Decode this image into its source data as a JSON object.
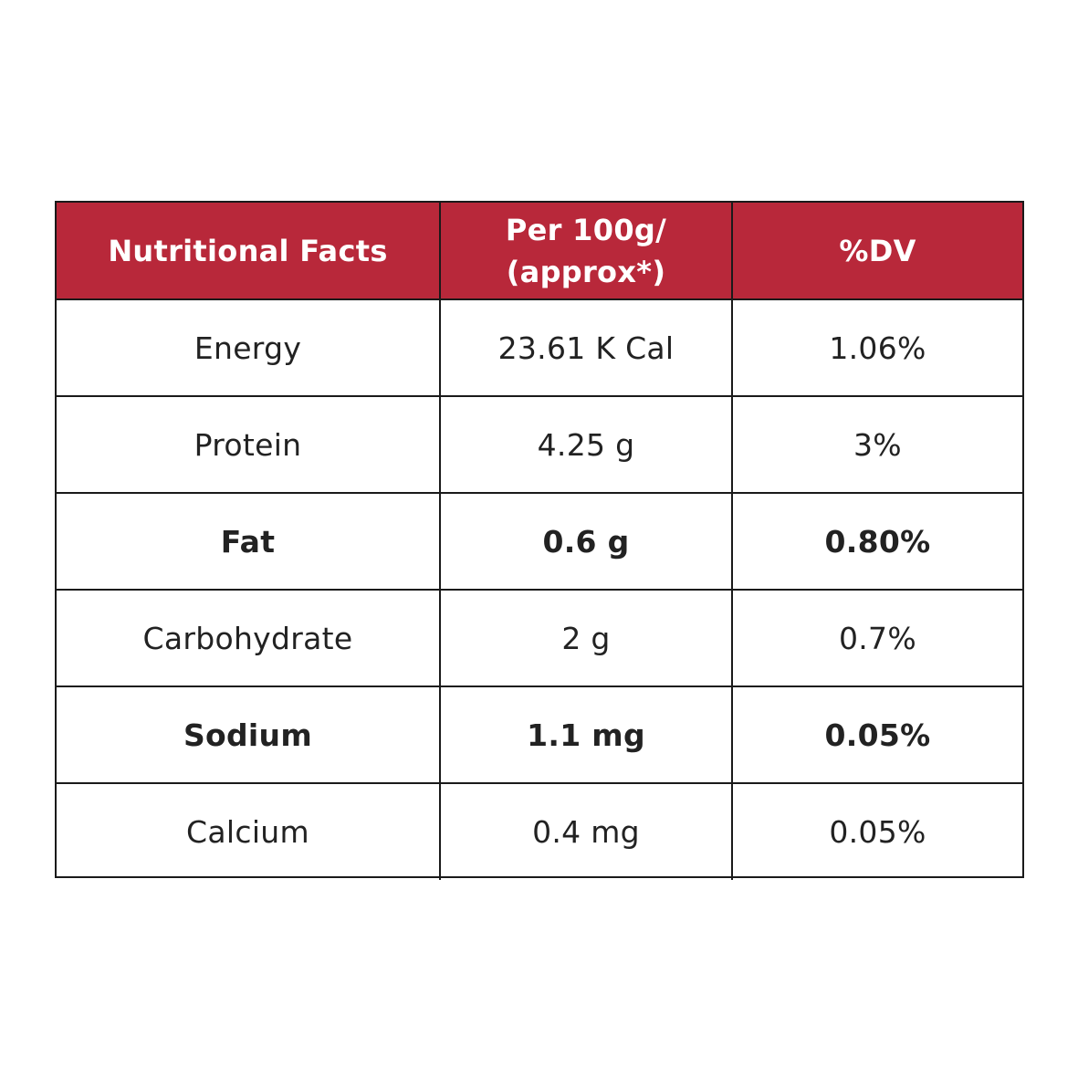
{
  "header": {
    "col1": "Nutritional Facts",
    "col2_line1": "Per 100g/",
    "col2_line2": "(approx*)",
    "col3": "%DV"
  },
  "rows": [
    {
      "nutrient": "Energy",
      "amount": "23.61 K Cal",
      "dv": "1.06%",
      "bold": false
    },
    {
      "nutrient": "Protein",
      "amount": "4.25 g",
      "dv": "3%",
      "bold": false
    },
    {
      "nutrient": "Fat",
      "amount": "0.6 g",
      "dv": "0.80%",
      "bold": true
    },
    {
      "nutrient": "Carbohydrate",
      "amount": "2 g",
      "dv": "0.7%",
      "bold": false
    },
    {
      "nutrient": "Sodium",
      "amount": "1.1 mg",
      "dv": "0.05%",
      "bold": true
    },
    {
      "nutrient": "Calcium",
      "amount": "0.4 mg",
      "dv": "0.05%",
      "bold": false
    }
  ],
  "colors": {
    "header_bg": "#b8283a",
    "header_text": "#ffffff",
    "border": "#1a1a1a",
    "body_text": "#222222"
  }
}
